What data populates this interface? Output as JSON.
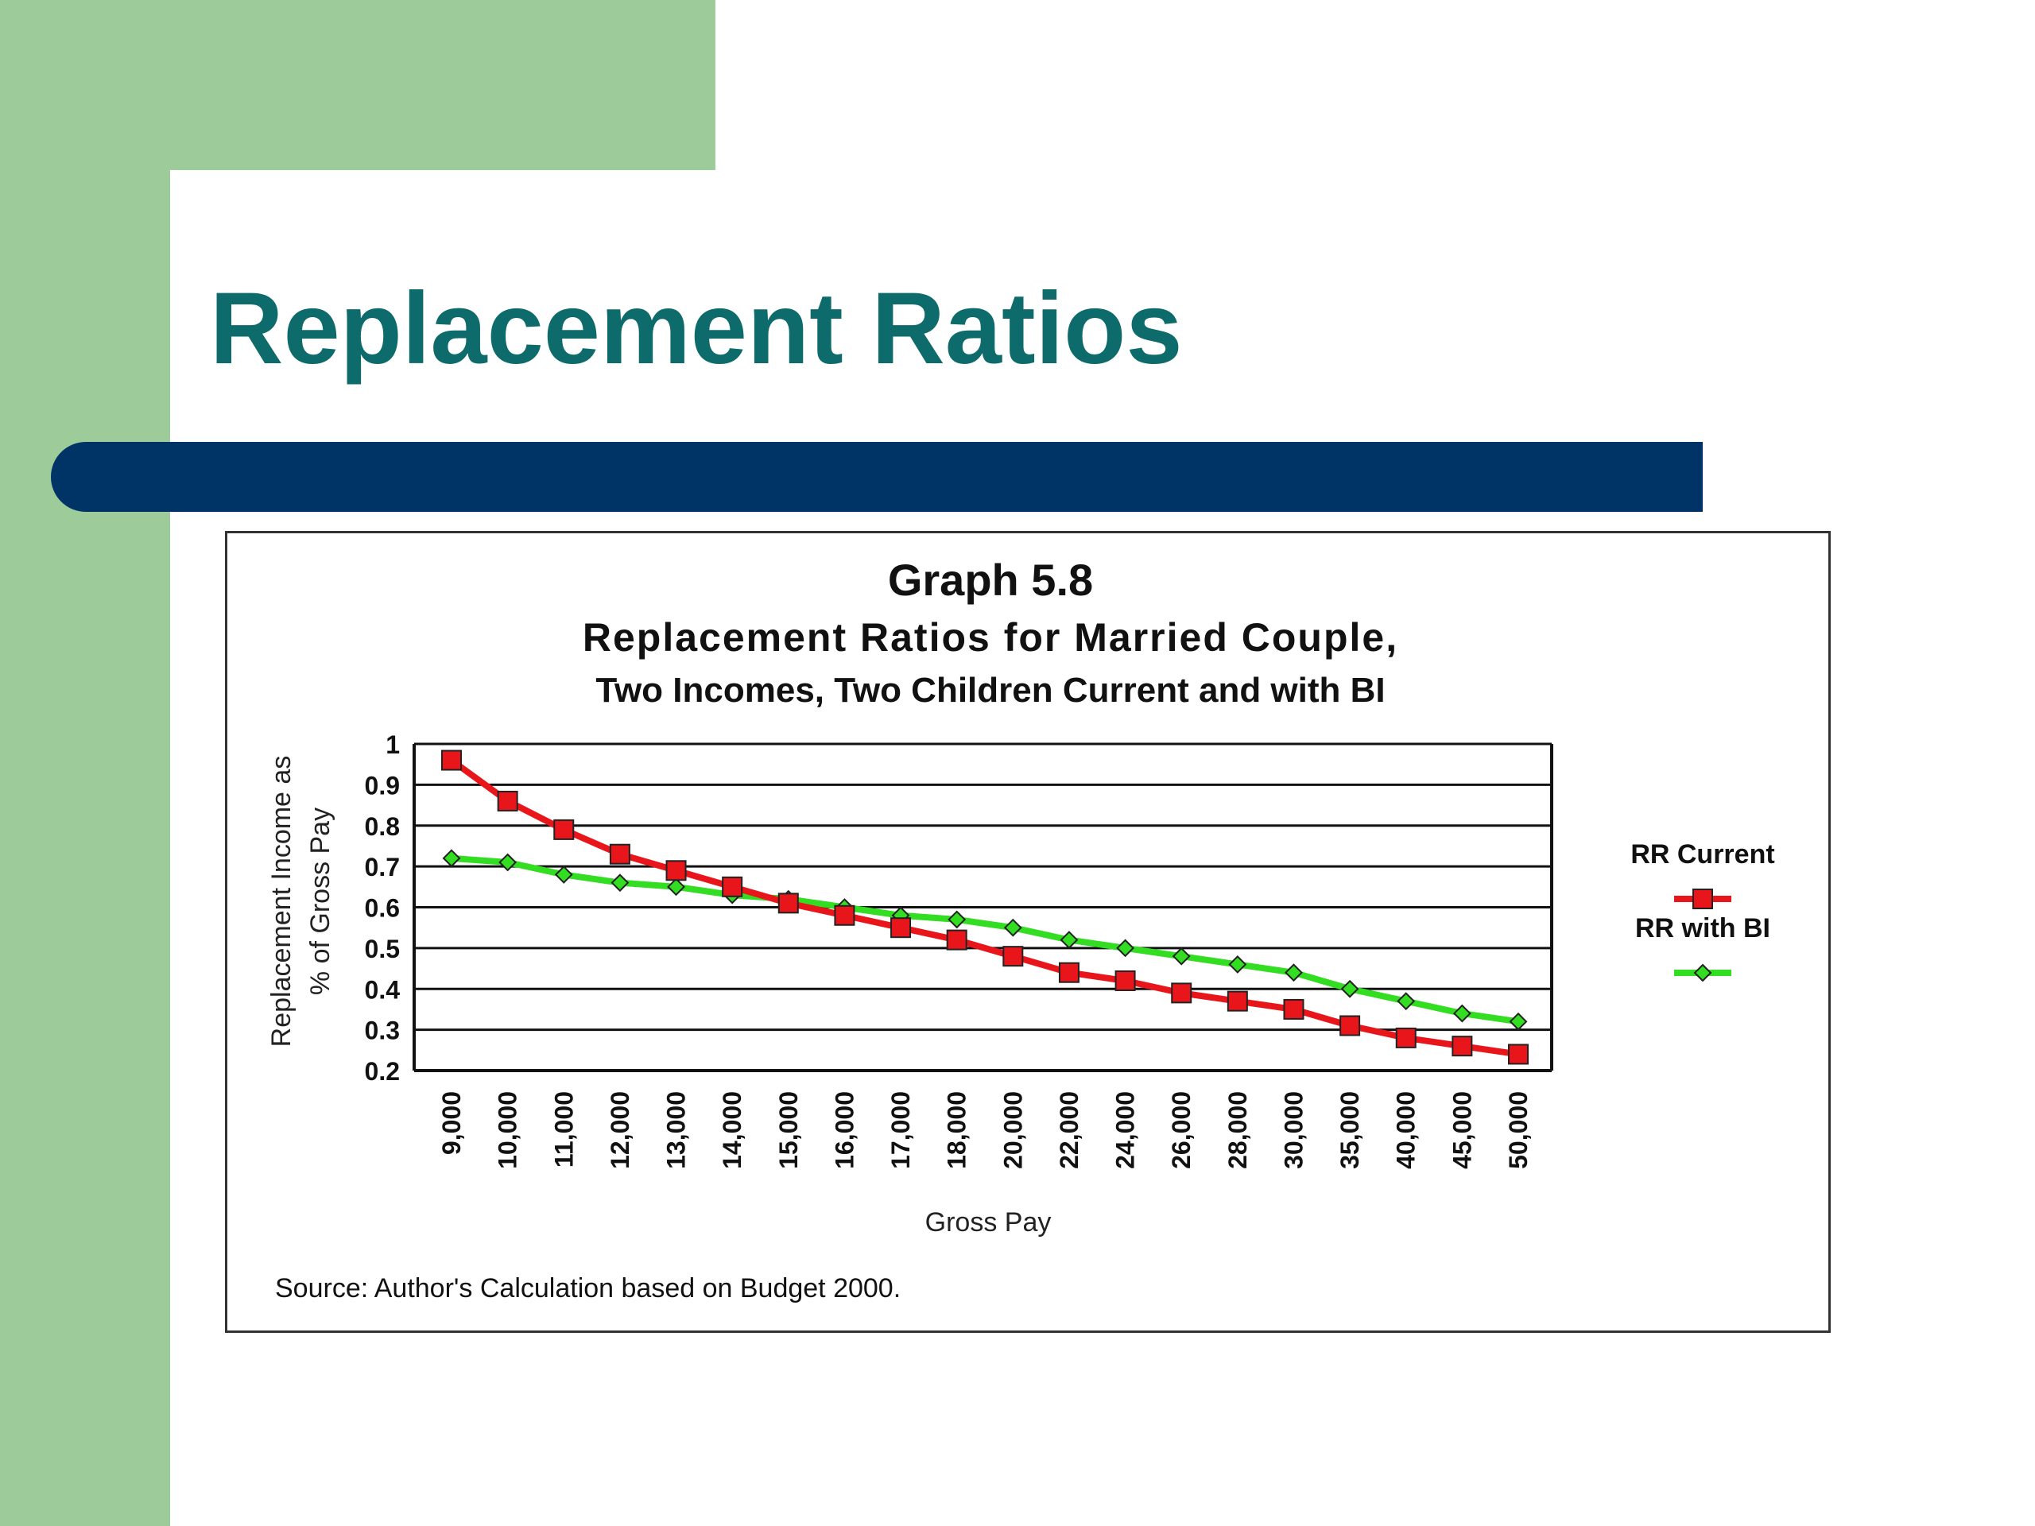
{
  "slide": {
    "title": "Replacement Ratios",
    "source": "Source: Author's Calculation based on Budget 2000."
  },
  "colors": {
    "green_panel": "#9dcc9a",
    "title_teal": "#0e6b6b",
    "navy_bar": "#003366",
    "rr_current": "#e8161b",
    "rr_with_bi": "#33dd22"
  },
  "chart_data": {
    "type": "line",
    "title": "Graph 5.8",
    "subtitle_1": "Replacement Ratios for Married Couple,",
    "subtitle_2": "Two Incomes, Two Children Current and with BI",
    "xlabel": "Gross Pay",
    "ylabel_1": "Replacement Income as",
    "ylabel_2": "% of Gross Pay",
    "ylim": [
      0.2,
      1
    ],
    "yticks": [
      "0.2",
      "0.3",
      "0.4",
      "0.5",
      "0.6",
      "0.7",
      "0.8",
      "0.9",
      "1"
    ],
    "grid": true,
    "legend_position": "right",
    "categories": [
      "9,000",
      "10,000",
      "11,000",
      "12,000",
      "13,000",
      "14,000",
      "15,000",
      "16,000",
      "17,000",
      "18,000",
      "20,000",
      "22,000",
      "24,000",
      "26,000",
      "28,000",
      "30,000",
      "35,000",
      "40,000",
      "45,000",
      "50,000"
    ],
    "series": [
      {
        "name": "RR Current",
        "marker": "square",
        "color": "#e8161b",
        "values": [
          0.96,
          0.86,
          0.79,
          0.73,
          0.69,
          0.65,
          0.61,
          0.58,
          0.55,
          0.52,
          0.48,
          0.44,
          0.42,
          0.39,
          0.37,
          0.35,
          0.31,
          0.28,
          0.26,
          0.24
        ]
      },
      {
        "name": "RR with BI",
        "marker": "diamond",
        "color": "#33dd22",
        "values": [
          0.72,
          0.71,
          0.68,
          0.66,
          0.65,
          0.63,
          0.62,
          0.6,
          0.58,
          0.57,
          0.55,
          0.52,
          0.5,
          0.48,
          0.46,
          0.44,
          0.4,
          0.37,
          0.34,
          0.32
        ]
      }
    ]
  }
}
